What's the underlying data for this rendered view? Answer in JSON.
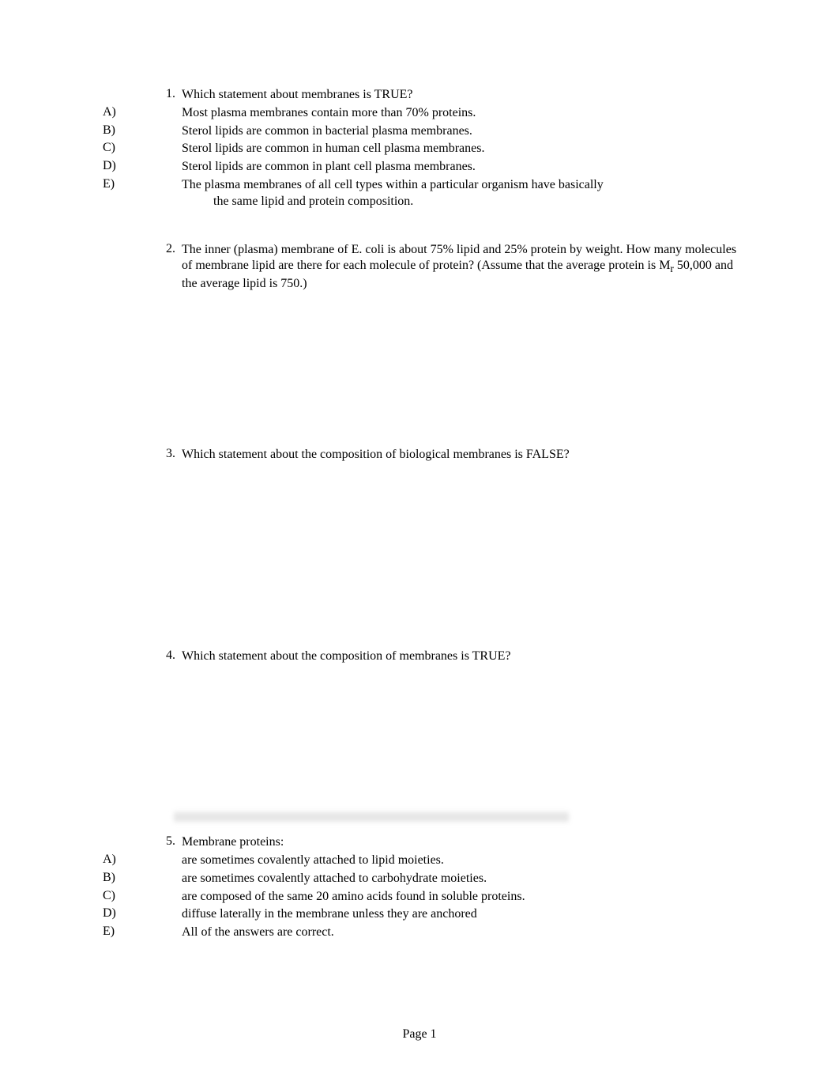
{
  "questions": [
    {
      "number": "1.",
      "text": "Which statement about membranes is TRUE?",
      "options": [
        {
          "letter": "A)",
          "text": "Most plasma membranes contain more than 70% proteins."
        },
        {
          "letter": "B)",
          "text": "Sterol lipids are common in bacterial plasma membranes."
        },
        {
          "letter": "C)",
          "text": "Sterol lipids are common in human cell plasma membranes."
        },
        {
          "letter": "D)",
          "text": "Sterol lipids are common in plant cell plasma membranes."
        },
        {
          "letter": "E)",
          "text": "The plasma membranes of all cell types within a particular organism have basically the same lipid and protein composition.",
          "multiline": true,
          "line2": "the same lipid and protein composition."
        }
      ]
    },
    {
      "number": "2.",
      "text": "The inner (plasma) membrane of E. coli is about 75% lipid and 25% protein by weight. How many molecules of membrane lipid are there for each molecule of protein? (Assume that the average protein is Mr 50,000 and the average lipid is 750.)",
      "multiline": true
    },
    {
      "number": "3.",
      "text": "Which statement about the composition of biological membranes is FALSE?"
    },
    {
      "number": "4.",
      "text": "Which statement about the composition of membranes is TRUE?"
    },
    {
      "number": "5.",
      "text": "Membrane proteins:",
      "options": [
        {
          "letter": "A)",
          "text": "are sometimes covalently attached to lipid moieties."
        },
        {
          "letter": "B)",
          "text": "are sometimes covalently attached to carbohydrate moieties."
        },
        {
          "letter": "C)",
          "text": "are composed of the same 20 amino acids found in soluble proteins."
        },
        {
          "letter": "D)",
          "text": "diffuse laterally in the membrane unless they are anchored"
        },
        {
          "letter": "E)",
          "text": "All of the answers are correct."
        }
      ]
    }
  ],
  "pageLabel": "Page 1"
}
